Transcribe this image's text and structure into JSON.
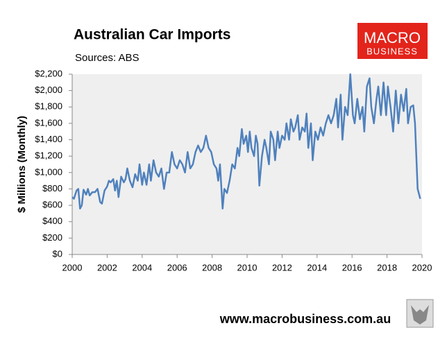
{
  "chart_data": {
    "type": "line",
    "title": "Australian Car Imports",
    "subtitle": "Sources: ABS",
    "ylabel": "$ Millions (Monthly)",
    "xlim": [
      2000,
      2020
    ],
    "xticks": [
      2000,
      2002,
      2004,
      2006,
      2008,
      2010,
      2012,
      2014,
      2016,
      2018,
      2020
    ],
    "ylim": [
      0,
      2200
    ],
    "yticks": [
      {
        "value": 0,
        "label": "$0"
      },
      {
        "value": 200,
        "label": "$200"
      },
      {
        "value": 400,
        "label": "$400"
      },
      {
        "value": 600,
        "label": "$600"
      },
      {
        "value": 800,
        "label": "$800"
      },
      {
        "value": 1000,
        "label": "$1,000"
      },
      {
        "value": 1200,
        "label": "$1,200"
      },
      {
        "value": 1400,
        "label": "$1,400"
      },
      {
        "value": 1600,
        "label": "$1,600"
      },
      {
        "value": 1800,
        "label": "$1,800"
      },
      {
        "value": 2000,
        "label": "$2,000"
      },
      {
        "value": 2200,
        "label": "$2,200"
      }
    ],
    "grid": false,
    "color": "#4f81bd",
    "x": [
      2000.0,
      2000.1,
      2000.25,
      2000.35,
      2000.45,
      2000.55,
      2000.65,
      2000.8,
      2000.9,
      2001.0,
      2001.15,
      2001.3,
      2001.45,
      2001.6,
      2001.7,
      2001.85,
      2002.0,
      2002.1,
      2002.2,
      2002.35,
      2002.45,
      2002.55,
      2002.65,
      2002.8,
      2002.95,
      2003.05,
      2003.15,
      2003.3,
      2003.45,
      2003.6,
      2003.75,
      2003.85,
      2004.0,
      2004.1,
      2004.25,
      2004.4,
      2004.5,
      2004.65,
      2004.8,
      2004.95,
      2005.1,
      2005.25,
      2005.4,
      2005.55,
      2005.7,
      2005.85,
      2006.0,
      2006.15,
      2006.3,
      2006.45,
      2006.6,
      2006.75,
      2006.9,
      2007.05,
      2007.2,
      2007.35,
      2007.5,
      2007.65,
      2007.8,
      2007.95,
      2008.1,
      2008.25,
      2008.35,
      2008.45,
      2008.6,
      2008.7,
      2008.85,
      2009.0,
      2009.15,
      2009.3,
      2009.45,
      2009.55,
      2009.7,
      2009.8,
      2009.95,
      2010.05,
      2010.15,
      2010.25,
      2010.4,
      2010.5,
      2010.6,
      2010.7,
      2010.85,
      2011.0,
      2011.1,
      2011.25,
      2011.35,
      2011.5,
      2011.6,
      2011.75,
      2011.85,
      2012.0,
      2012.15,
      2012.25,
      2012.4,
      2012.5,
      2012.65,
      2012.75,
      2012.9,
      2013.0,
      2013.15,
      2013.3,
      2013.4,
      2013.5,
      2013.65,
      2013.75,
      2013.9,
      2014.05,
      2014.2,
      2014.35,
      2014.5,
      2014.65,
      2014.8,
      2014.95,
      2015.1,
      2015.2,
      2015.35,
      2015.45,
      2015.6,
      2015.75,
      2015.9,
      2016.05,
      2016.15,
      2016.3,
      2016.45,
      2016.6,
      2016.7,
      2016.85,
      2017.0,
      2017.1,
      2017.25,
      2017.4,
      2017.5,
      2017.65,
      2017.8,
      2017.95,
      2018.05,
      2018.2,
      2018.35,
      2018.5,
      2018.65,
      2018.8,
      2018.95,
      2019.1,
      2019.2,
      2019.35,
      2019.5,
      2019.6,
      2019.75,
      2019.9
    ],
    "series": [
      {
        "name": "Car imports",
        "color": "#4f81bd",
        "values": [
          700,
          680,
          780,
          800,
          560,
          600,
          790,
          730,
          800,
          720,
          760,
          760,
          800,
          640,
          620,
          780,
          830,
          900,
          880,
          920,
          780,
          900,
          700,
          950,
          880,
          920,
          1050,
          900,
          820,
          980,
          900,
          1100,
          850,
          1000,
          850,
          1100,
          900,
          1150,
          1000,
          950,
          1050,
          800,
          1000,
          1000,
          1250,
          1100,
          1050,
          1150,
          1100,
          1000,
          1250,
          1050,
          1100,
          1250,
          1330,
          1250,
          1300,
          1450,
          1300,
          1250,
          1100,
          1050,
          900,
          1100,
          560,
          800,
          750,
          900,
          1100,
          1050,
          1300,
          1200,
          1530,
          1350,
          1450,
          1250,
          1500,
          1300,
          1200,
          1450,
          1350,
          840,
          1200,
          1400,
          1300,
          1100,
          1500,
          1400,
          1150,
          1500,
          1300,
          1450,
          1400,
          1600,
          1400,
          1650,
          1500,
          1550,
          1700,
          1400,
          1550,
          1500,
          1720,
          1300,
          1600,
          1150,
          1500,
          1400,
          1550,
          1450,
          1600,
          1700,
          1600,
          1700,
          1900,
          1550,
          1950,
          1400,
          1800,
          1700,
          2200,
          1700,
          1600,
          1900,
          1650,
          1800,
          1500,
          2050,
          2150,
          1800,
          1600,
          1900,
          2050,
          1700,
          2100,
          1700,
          2050,
          1800,
          1500,
          2000,
          1600,
          1950,
          1750,
          2020,
          1600,
          1800,
          1820,
          1600,
          800,
          680
        ]
      }
    ]
  },
  "logo": {
    "line1": "MACRO",
    "line2": "BUSINESS"
  },
  "footer": "www.macrobusiness.com.au"
}
